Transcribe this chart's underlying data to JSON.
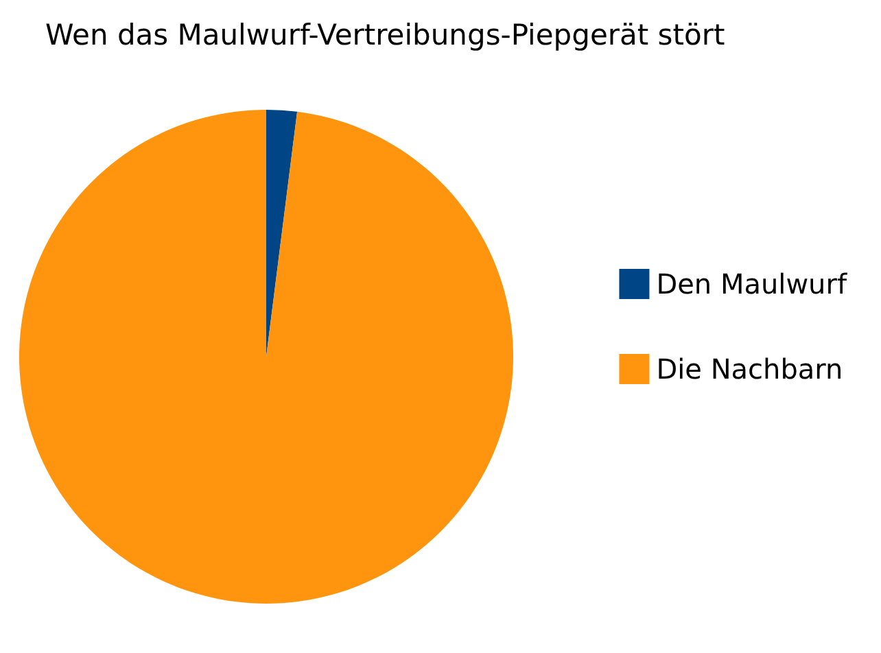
{
  "chart_data": {
    "type": "pie",
    "title": "Wen das Maulwurf-Vertreibungs-Piepgerät stört",
    "categories": [
      "Den Maulwurf",
      "Die Nachbarn"
    ],
    "values": [
      2,
      98
    ],
    "colors": [
      "#004586",
      "#ff950e"
    ],
    "legend": "right"
  }
}
